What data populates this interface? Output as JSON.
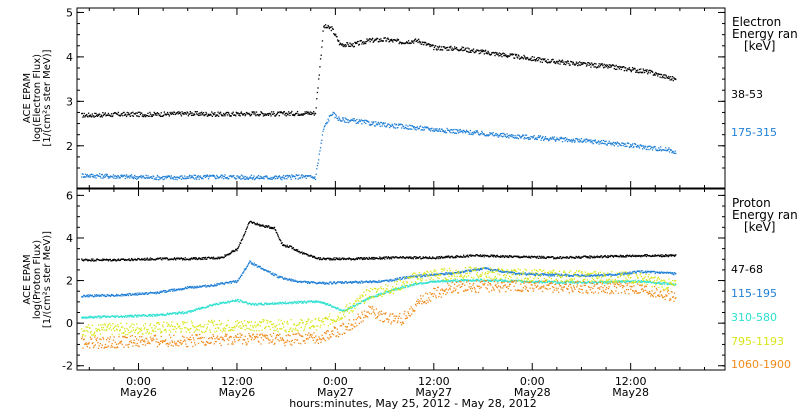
{
  "xaxis": {
    "caption": "hours:minutes, May 25, 2012 - May 28, 2012",
    "ticks": [
      {
        "t": 24,
        "time": "0:00",
        "date": "May26"
      },
      {
        "t": 36,
        "time": "12:00",
        "date": "May26"
      },
      {
        "t": 48,
        "time": "0:00",
        "date": "May27"
      },
      {
        "t": 60,
        "time": "12:00",
        "date": "May27"
      },
      {
        "t": 72,
        "time": "0:00",
        "date": "May28"
      },
      {
        "t": 84,
        "time": "12:00",
        "date": "May28"
      }
    ],
    "range_hours": [
      16.5,
      95.5
    ]
  },
  "chart_data": [
    {
      "type": "scatter",
      "panel": "electron",
      "ylabel_lines": [
        "ACE EPAM",
        "log(Electron Flux)",
        "[1/(cm²s ster MeV)]"
      ],
      "ylim": [
        1.05,
        5.1
      ],
      "yticks": [
        2,
        3,
        4,
        5
      ],
      "legend_title": [
        "Electron",
        "Energy ran",
        "[keV]"
      ],
      "x_units": "hours since May 25, 2012 00:00",
      "series": [
        {
          "name": "38-53",
          "color": "#000000",
          "x": [
            17,
            22,
            26,
            30,
            34,
            38,
            41,
            44,
            45.5,
            46.5,
            47.5,
            48.5,
            50,
            52,
            54,
            56,
            58,
            60,
            63,
            66,
            70,
            74,
            78,
            82,
            86,
            88.5,
            89.5
          ],
          "y": [
            2.7,
            2.72,
            2.72,
            2.74,
            2.72,
            2.74,
            2.73,
            2.75,
            2.75,
            4.7,
            4.65,
            4.3,
            4.28,
            4.38,
            4.4,
            4.35,
            4.38,
            4.22,
            4.2,
            4.12,
            4.02,
            3.92,
            3.85,
            3.78,
            3.68,
            3.55,
            3.5
          ]
        },
        {
          "name": "175-315",
          "color": "#1f7fd6",
          "x": [
            17,
            22,
            26,
            30,
            34,
            38,
            41,
            44,
            45.5,
            46.5,
            47.5,
            48.5,
            50,
            53,
            56,
            60,
            64,
            68,
            72,
            76,
            80,
            84,
            88.5,
            89.5
          ],
          "y": [
            1.35,
            1.32,
            1.3,
            1.3,
            1.32,
            1.3,
            1.3,
            1.32,
            1.3,
            2.4,
            2.75,
            2.6,
            2.58,
            2.5,
            2.45,
            2.38,
            2.32,
            2.25,
            2.2,
            2.15,
            2.1,
            2.02,
            1.92,
            1.88
          ]
        }
      ]
    },
    {
      "type": "scatter",
      "panel": "proton",
      "ylabel_lines": [
        "ACE EPAM",
        "log(Proton Flux)",
        "[1/(cm²s ster MeV)]"
      ],
      "ylim": [
        -2.2,
        6.3
      ],
      "yticks": [
        -2,
        0,
        2,
        4,
        6
      ],
      "legend_title": [
        "Proton",
        "Energy ran",
        "[keV]"
      ],
      "x_units": "hours since May 25, 2012 00:00",
      "series": [
        {
          "name": "47-68",
          "color": "#000000",
          "x": [
            17,
            22,
            26,
            30,
            34,
            36,
            37.5,
            39,
            40.5,
            41.5,
            42.5,
            44,
            46,
            50,
            55,
            60,
            65,
            70,
            75,
            80,
            85,
            89.5
          ],
          "y": [
            3.0,
            3.0,
            3.05,
            3.05,
            3.1,
            3.5,
            4.8,
            4.6,
            4.5,
            3.7,
            3.6,
            3.3,
            3.05,
            3.05,
            3.1,
            3.1,
            3.2,
            3.15,
            3.1,
            3.15,
            3.2,
            3.2
          ]
        },
        {
          "name": "115-195",
          "color": "#1f7fd6",
          "x": [
            17,
            22,
            26,
            30,
            33,
            36,
            37.5,
            39,
            41,
            43,
            46,
            50,
            54,
            57,
            60,
            63,
            66,
            70,
            74,
            78,
            82,
            85,
            89.5
          ],
          "y": [
            1.3,
            1.35,
            1.45,
            1.7,
            1.8,
            2.0,
            2.9,
            2.6,
            2.2,
            2.0,
            1.9,
            1.95,
            2.0,
            2.2,
            2.3,
            2.4,
            2.6,
            2.35,
            2.3,
            2.25,
            2.3,
            2.45,
            2.35
          ]
        },
        {
          "name": "310-580",
          "color": "#2ee0d0",
          "x": [
            17,
            22,
            26,
            30,
            33,
            36,
            38,
            40,
            43,
            46,
            49,
            52,
            55,
            58,
            61,
            65,
            70,
            75,
            80,
            85,
            89.5
          ],
          "y": [
            0.3,
            0.35,
            0.4,
            0.55,
            0.9,
            1.1,
            0.9,
            0.95,
            1.0,
            1.05,
            0.6,
            1.2,
            1.6,
            1.9,
            2.0,
            2.05,
            2.0,
            1.95,
            1.95,
            2.0,
            1.85
          ]
        },
        {
          "name": "795-1193",
          "color": "#d8e61a",
          "x": [
            17,
            22,
            26,
            30,
            34,
            38,
            42,
            46,
            48,
            50,
            52,
            55,
            58,
            60,
            62,
            65,
            70,
            75,
            80,
            85,
            89.5
          ],
          "y": [
            -0.3,
            -0.25,
            -0.2,
            -0.15,
            -0.1,
            -0.05,
            -0.1,
            0.0,
            0.3,
            0.8,
            1.4,
            1.7,
            2.2,
            2.3,
            2.35,
            2.4,
            2.3,
            2.25,
            2.2,
            2.15,
            1.75
          ]
        },
        {
          "name": "1060-1900",
          "color": "#f08a1a",
          "x": [
            17,
            22,
            26,
            30,
            34,
            38,
            42,
            46,
            48,
            50,
            52,
            54,
            56,
            58,
            60,
            62,
            65,
            70,
            75,
            80,
            85,
            89.5
          ],
          "y": [
            -0.9,
            -0.85,
            -0.8,
            -0.8,
            -0.75,
            -0.7,
            -0.75,
            -0.65,
            -0.4,
            0.0,
            0.6,
            0.3,
            0.2,
            1.0,
            1.4,
            1.7,
            1.75,
            1.8,
            1.75,
            1.7,
            1.65,
            1.25
          ]
        }
      ]
    }
  ]
}
